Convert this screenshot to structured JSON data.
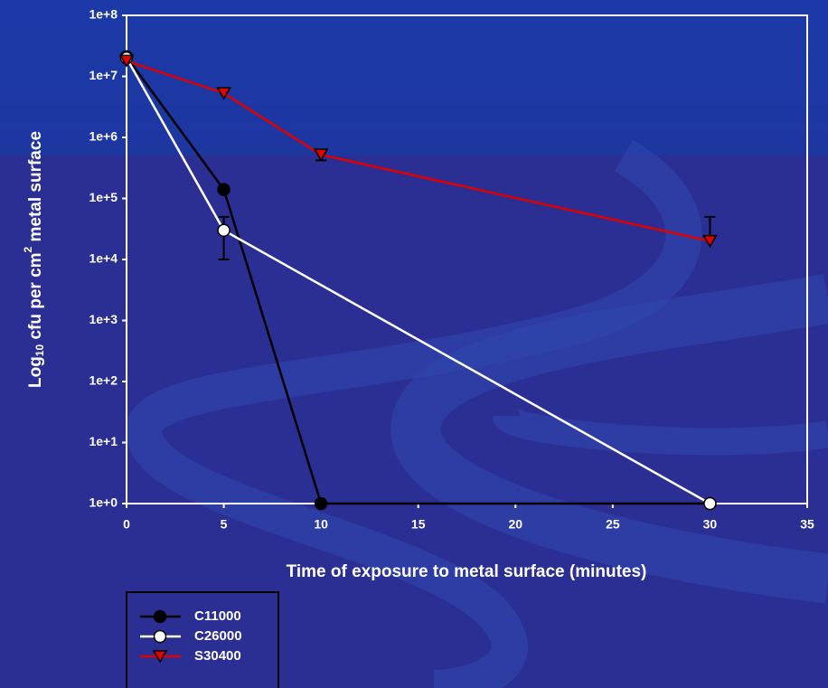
{
  "chart_data": {
    "type": "line",
    "x_label": "Time of exposure to metal surface (minutes)",
    "y_label_parts": [
      "Log",
      "10",
      " cfu per cm",
      "2",
      "  metal surface"
    ],
    "log_y": true,
    "xlim": [
      0,
      35
    ],
    "xticks": [
      0,
      5,
      10,
      15,
      20,
      25,
      30,
      35
    ],
    "ylim": [
      1,
      100000000
    ],
    "yticks": [
      {
        "value": 1,
        "label": "1e+0"
      },
      {
        "value": 10,
        "label": "1e+1"
      },
      {
        "value": 100,
        "label": "1e+2"
      },
      {
        "value": 1000,
        "label": "1e+3"
      },
      {
        "value": 10000,
        "label": "1e+4"
      },
      {
        "value": 100000,
        "label": "1e+5"
      },
      {
        "value": 1000000,
        "label": "1e+6"
      },
      {
        "value": 10000000,
        "label": "1e+7"
      },
      {
        "value": 100000000,
        "label": "1e+8"
      }
    ],
    "legend": "bottom-left",
    "series": [
      {
        "name": "C11000",
        "color": "#000000",
        "marker": "circle",
        "marker_fill": "#000000",
        "x": [
          0,
          5,
          10,
          30
        ],
        "values": [
          21000000,
          140000,
          1,
          1
        ],
        "errors": [
          null,
          null,
          null,
          null
        ]
      },
      {
        "name": "C26000",
        "color": "#ffffff",
        "marker": "circle",
        "marker_fill": "#ffffff",
        "x": [
          0,
          5,
          30
        ],
        "values": [
          20000000,
          30000,
          1
        ],
        "errors": [
          null,
          20000,
          null
        ]
      },
      {
        "name": "S30400",
        "color": "#e00000",
        "marker": "triangle-down",
        "marker_fill": "#e00000",
        "x": [
          0,
          5,
          10,
          30
        ],
        "values": [
          18000000,
          5300000,
          520000,
          20000
        ],
        "errors": [
          null,
          null,
          100000,
          30000
        ]
      }
    ]
  }
}
